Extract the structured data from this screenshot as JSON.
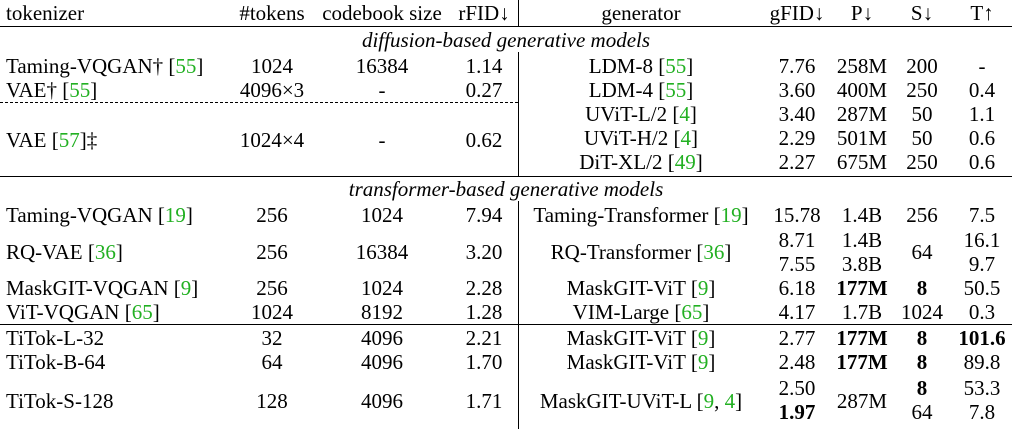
{
  "header": {
    "tokenizer": "tokenizer",
    "tokens": "#tokens",
    "codebook": "codebook size",
    "rfid": "rFID↓",
    "generator": "generator",
    "gfid": "gFID↓",
    "p": "P↓",
    "s": "S↓",
    "t": "T↑"
  },
  "sections": {
    "diffusion": "diffusion-based generative models",
    "transformer": "transformer-based generative models"
  },
  "diffusion": {
    "tok": [
      {
        "name": "Taming-VQGAN†",
        "cite": "55",
        "tokens": "1024",
        "codebook": "16384",
        "rfid": "1.14"
      },
      {
        "name": "VAE†",
        "cite": "55",
        "tokens": "4096×3",
        "codebook": "-",
        "rfid": "0.27"
      },
      {
        "name": "VAE",
        "cite": "57",
        "suffix": "‡",
        "tokens": "1024×4",
        "codebook": "-",
        "rfid": "0.62"
      }
    ],
    "gen": [
      {
        "name": "LDM-8",
        "cite": "55",
        "gfid": "7.76",
        "p": "258M",
        "s": "200",
        "t": "-"
      },
      {
        "name": "LDM-4",
        "cite": "55",
        "gfid": "3.60",
        "p": "400M",
        "s": "250",
        "t": "0.4"
      },
      {
        "name": "UViT-L/2",
        "cite": "4",
        "gfid": "3.40",
        "p": "287M",
        "s": "50",
        "t": "1.1"
      },
      {
        "name": "UViT-H/2",
        "cite": "4",
        "gfid": "2.29",
        "p": "501M",
        "s": "50",
        "t": "0.6"
      },
      {
        "name": "DiT-XL/2",
        "cite": "49",
        "gfid": "2.27",
        "p": "675M",
        "s": "250",
        "t": "0.6"
      }
    ]
  },
  "transformer": {
    "r0": {
      "tok": "Taming-VQGAN",
      "tcite": "19",
      "tokens": "256",
      "codebook": "1024",
      "rfid": "7.94",
      "gen": "Taming-Transformer",
      "gcite": "19",
      "gfid": "15.78",
      "p": "1.4B",
      "s": "256",
      "t": "7.5"
    },
    "r1": {
      "tok": "RQ-VAE",
      "tcite": "36",
      "tokens": "256",
      "codebook": "16384",
      "rfid": "3.20",
      "gen": "RQ-Transformer",
      "gcite": "36",
      "gfid_a": "8.71",
      "gfid_b": "7.55",
      "p_a": "1.4B",
      "p_b": "3.8B",
      "s": "64",
      "t_a": "16.1",
      "t_b": "9.7"
    },
    "r2": {
      "tok": "MaskGIT-VQGAN",
      "tcite": "9",
      "tokens": "256",
      "codebook": "1024",
      "rfid": "2.28",
      "gen": "MaskGIT-ViT",
      "gcite": "9",
      "gfid": "6.18",
      "p": "177M",
      "s": "8",
      "t": "50.5"
    },
    "r3": {
      "tok": "ViT-VQGAN",
      "tcite": "65",
      "tokens": "1024",
      "codebook": "8192",
      "rfid": "1.28",
      "gen": "VIM-Large",
      "gcite": "65",
      "gfid": "4.17",
      "p": "1.7B",
      "s": "1024",
      "t": "0.3"
    }
  },
  "titok": {
    "r0": {
      "tok": "TiTok-L-32",
      "tokens": "32",
      "codebook": "4096",
      "rfid": "2.21",
      "gen": "MaskGIT-ViT",
      "gcite": "9",
      "gfid": "2.77",
      "p": "177M",
      "s": "8",
      "t": "101.6"
    },
    "r1": {
      "tok": "TiTok-B-64",
      "tokens": "64",
      "codebook": "4096",
      "rfid": "1.70",
      "gen": "MaskGIT-ViT",
      "gcite": "9",
      "gfid": "2.48",
      "p": "177M",
      "s": "8",
      "t": "89.8"
    },
    "r2": {
      "tok": "TiTok-S-128",
      "tokens": "128",
      "codebook": "4096",
      "rfid": "1.71",
      "gen": "MaskGIT-UViT-L",
      "gcite_a": "9",
      "gcite_b": "4",
      "gfid_a": "2.50",
      "gfid_b": "1.97",
      "p": "287M",
      "s_a": "8",
      "s_b": "64",
      "t_a": "53.3",
      "t_b": "7.8"
    }
  },
  "colors": {
    "citation": "#22b022"
  }
}
